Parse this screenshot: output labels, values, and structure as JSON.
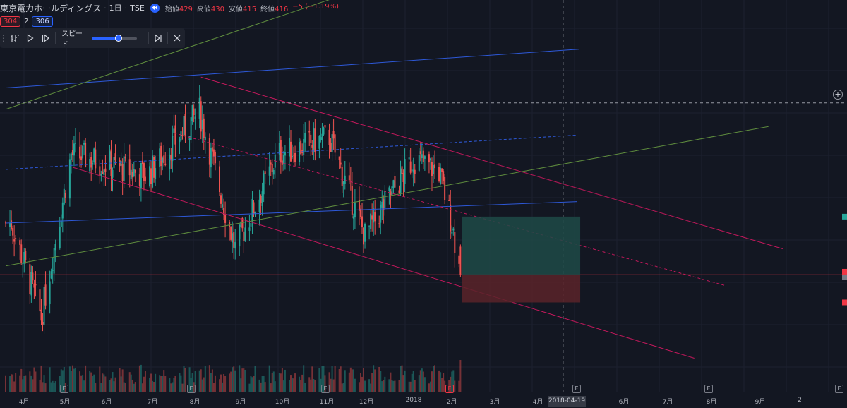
{
  "header": {
    "symbol": "東京電力ホールディングス",
    "interval": "1日",
    "exchange": "TSE",
    "ohlc": [
      {
        "label": "始値",
        "value": "429"
      },
      {
        "label": "高値",
        "value": "430"
      },
      {
        "label": "安値",
        "value": "415"
      },
      {
        "label": "終値",
        "value": "416"
      },
      {
        "label": "",
        "value": "−5 (−1.19%)"
      }
    ]
  },
  "badges": {
    "left": "304",
    "mid": "2",
    "right": "306"
  },
  "replay": {
    "speed_label": "スピード",
    "speed_fraction": 0.6
  },
  "colors": {
    "bg": "#131722",
    "up": "#26a69a",
    "down": "#ef5350",
    "blue_line": "#2e59d9",
    "green_line": "#5f8d3e",
    "pink_line": "#c2185b",
    "profit": "#1f4a47",
    "loss": "#5b2329"
  },
  "x_axis": {
    "labels": [
      "4月",
      "5月",
      "6月",
      "7月",
      "8月",
      "9月",
      "10月",
      "11月",
      "12月",
      "2018",
      "2月",
      "3月",
      "4月",
      "2018-04-19",
      "6月",
      "7月",
      "8月",
      "9月",
      "2"
    ],
    "crosshair_label": "2018-04-19"
  },
  "earnings_markers": [
    "E",
    "E",
    "E",
    "E",
    "E",
    "E",
    "E",
    "E"
  ],
  "chart_data": {
    "type": "candlestick",
    "start": "2017-03-24",
    "end": "2018-02-06",
    "ylim": [
      380,
      540
    ],
    "dates": [
      "2017-03-28",
      "2017-04-18",
      "2017-05-09",
      "2017-06-01",
      "2017-07-01",
      "2017-08-07",
      "2017-09-01",
      "2017-10-01",
      "2017-11-06",
      "2017-12-01",
      "2018-01-04",
      "2018-01-22",
      "2018-01-31",
      "2018-02-06"
    ],
    "close": [
      440,
      396,
      472,
      468,
      462,
      492,
      428,
      472,
      480,
      434,
      470,
      464,
      440,
      416
    ],
    "ohlc_last": {
      "open": 429,
      "high": 430,
      "low": 415,
      "close": 416
    }
  }
}
